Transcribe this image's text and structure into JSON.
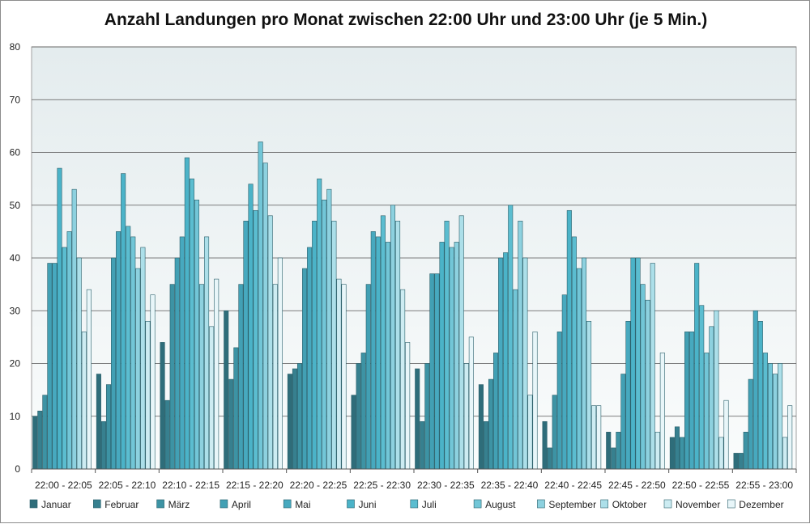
{
  "chart_data": {
    "type": "bar",
    "title": "Anzahl Landungen pro Monat zwischen 22:00 Uhr und 23:00 Uhr (je 5 Min.)",
    "xlabel": "",
    "ylabel": "",
    "ylim": [
      0,
      80
    ],
    "yticks": [
      0,
      10,
      20,
      30,
      40,
      50,
      60,
      70,
      80
    ],
    "grid": true,
    "legend_position": "bottom",
    "categories": [
      "22:00 - 22:05",
      "22:05 - 22:10",
      "22:10 - 22:15",
      "22:15 - 22:20",
      "22:20 - 22:25",
      "22:25 - 22:30",
      "22:30 - 22:35",
      "22:35 - 22:40",
      "22:40 - 22:45",
      "22:45 - 22:50",
      "22:50 - 22:55",
      "22:55 - 23:00"
    ],
    "series": [
      {
        "name": "Januar",
        "color": "#2e6d7a",
        "values": [
          10,
          18,
          24,
          30,
          18,
          14,
          19,
          16,
          9,
          7,
          6,
          3
        ]
      },
      {
        "name": "Februar",
        "color": "#37808f",
        "values": [
          11,
          9,
          13,
          17,
          19,
          20,
          9,
          9,
          4,
          4,
          8,
          3
        ]
      },
      {
        "name": "März",
        "color": "#3d93a4",
        "values": [
          14,
          16,
          35,
          23,
          20,
          22,
          20,
          17,
          14,
          7,
          6,
          7
        ]
      },
      {
        "name": "April",
        "color": "#42a0b4",
        "values": [
          39,
          40,
          40,
          35,
          38,
          35,
          37,
          22,
          26,
          18,
          26,
          17
        ]
      },
      {
        "name": "Mai",
        "color": "#47a9bf",
        "values": [
          39,
          45,
          44,
          47,
          42,
          45,
          37,
          40,
          33,
          28,
          26,
          30
        ]
      },
      {
        "name": "Juni",
        "color": "#4bb3c8",
        "values": [
          57,
          56,
          59,
          54,
          47,
          44,
          43,
          41,
          49,
          40,
          39,
          28
        ]
      },
      {
        "name": "Juli",
        "color": "#5bbdd0",
        "values": [
          42,
          46,
          55,
          49,
          55,
          48,
          47,
          50,
          44,
          40,
          31,
          22
        ]
      },
      {
        "name": "August",
        "color": "#72c6d7",
        "values": [
          45,
          44,
          51,
          62,
          51,
          43,
          42,
          34,
          38,
          35,
          22,
          20
        ]
      },
      {
        "name": "September",
        "color": "#8dd1df",
        "values": [
          53,
          38,
          35,
          58,
          53,
          50,
          43,
          47,
          40,
          32,
          27,
          18
        ]
      },
      {
        "name": "Oktober",
        "color": "#acdfe9",
        "values": [
          40,
          42,
          44,
          48,
          47,
          47,
          48,
          40,
          28,
          39,
          30,
          20
        ]
      },
      {
        "name": "November",
        "color": "#cdecf2",
        "values": [
          26,
          28,
          27,
          35,
          36,
          34,
          20,
          14,
          12,
          7,
          6,
          6
        ]
      },
      {
        "name": "Dezember",
        "color": "#e8f6f9",
        "values": [
          34,
          33,
          36,
          40,
          35,
          24,
          25,
          26,
          12,
          22,
          13,
          12
        ]
      }
    ]
  }
}
